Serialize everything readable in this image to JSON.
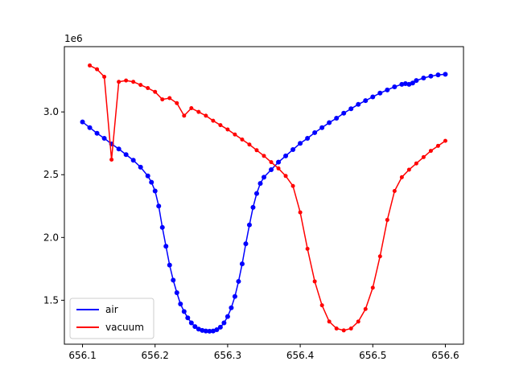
{
  "chart_data": {
    "type": "line",
    "title": "",
    "xlabel": "",
    "ylabel": "",
    "y_offset_label": "1e6",
    "xlim": [
      656.075,
      656.625
    ],
    "ylim": [
      1150000,
      3520000
    ],
    "x_ticks": [
      656.1,
      656.2,
      656.3,
      656.4,
      656.5,
      656.6
    ],
    "x_tick_labels": [
      "656.1",
      "656.2",
      "656.3",
      "656.4",
      "656.5",
      "656.6"
    ],
    "y_ticks": [
      1500000,
      2000000,
      2500000,
      3000000
    ],
    "y_tick_labels": [
      "1.5",
      "2.0",
      "2.5",
      "3.0"
    ],
    "grid": false,
    "legend_position": "lower-left",
    "series": [
      {
        "name": "air",
        "color": "#0000ff",
        "marker_size": 3,
        "points": [
          [
            656.1,
            2920000
          ],
          [
            656.11,
            2875000
          ],
          [
            656.12,
            2830000
          ],
          [
            656.13,
            2790000
          ],
          [
            656.14,
            2745000
          ],
          [
            656.15,
            2705000
          ],
          [
            656.16,
            2660000
          ],
          [
            656.17,
            2615000
          ],
          [
            656.18,
            2560000
          ],
          [
            656.19,
            2490000
          ],
          [
            656.195,
            2440000
          ],
          [
            656.2,
            2370000
          ],
          [
            656.205,
            2250000
          ],
          [
            656.21,
            2080000
          ],
          [
            656.215,
            1930000
          ],
          [
            656.22,
            1780000
          ],
          [
            656.225,
            1660000
          ],
          [
            656.23,
            1560000
          ],
          [
            656.235,
            1470000
          ],
          [
            656.24,
            1410000
          ],
          [
            656.245,
            1360000
          ],
          [
            656.25,
            1320000
          ],
          [
            656.255,
            1290000
          ],
          [
            656.26,
            1270000
          ],
          [
            656.265,
            1260000
          ],
          [
            656.27,
            1255000
          ],
          [
            656.275,
            1253000
          ],
          [
            656.28,
            1255000
          ],
          [
            656.285,
            1265000
          ],
          [
            656.29,
            1285000
          ],
          [
            656.295,
            1320000
          ],
          [
            656.3,
            1370000
          ],
          [
            656.305,
            1440000
          ],
          [
            656.31,
            1530000
          ],
          [
            656.315,
            1650000
          ],
          [
            656.32,
            1790000
          ],
          [
            656.325,
            1950000
          ],
          [
            656.33,
            2100000
          ],
          [
            656.335,
            2240000
          ],
          [
            656.34,
            2350000
          ],
          [
            656.345,
            2430000
          ],
          [
            656.35,
            2480000
          ],
          [
            656.36,
            2540000
          ],
          [
            656.37,
            2600000
          ],
          [
            656.38,
            2650000
          ],
          [
            656.39,
            2700000
          ],
          [
            656.4,
            2750000
          ],
          [
            656.41,
            2790000
          ],
          [
            656.42,
            2835000
          ],
          [
            656.43,
            2875000
          ],
          [
            656.44,
            2915000
          ],
          [
            656.45,
            2950000
          ],
          [
            656.46,
            2990000
          ],
          [
            656.47,
            3025000
          ],
          [
            656.48,
            3060000
          ],
          [
            656.49,
            3090000
          ],
          [
            656.5,
            3120000
          ],
          [
            656.51,
            3150000
          ],
          [
            656.52,
            3175000
          ],
          [
            656.53,
            3200000
          ],
          [
            656.54,
            3220000
          ],
          [
            656.545,
            3225000
          ],
          [
            656.55,
            3220000
          ],
          [
            656.555,
            3230000
          ],
          [
            656.56,
            3250000
          ],
          [
            656.57,
            3270000
          ],
          [
            656.58,
            3285000
          ],
          [
            656.59,
            3295000
          ],
          [
            656.6,
            3300000
          ]
        ]
      },
      {
        "name": "vacuum",
        "color": "#ff0000",
        "marker_size": 2.5,
        "points": [
          [
            656.11,
            3370000
          ],
          [
            656.12,
            3340000
          ],
          [
            656.13,
            3280000
          ],
          [
            656.14,
            2620000
          ],
          [
            656.15,
            3240000
          ],
          [
            656.16,
            3250000
          ],
          [
            656.17,
            3240000
          ],
          [
            656.18,
            3215000
          ],
          [
            656.19,
            3190000
          ],
          [
            656.2,
            3160000
          ],
          [
            656.21,
            3100000
          ],
          [
            656.22,
            3110000
          ],
          [
            656.23,
            3070000
          ],
          [
            656.24,
            2970000
          ],
          [
            656.25,
            3030000
          ],
          [
            656.26,
            3000000
          ],
          [
            656.27,
            2970000
          ],
          [
            656.28,
            2930000
          ],
          [
            656.29,
            2895000
          ],
          [
            656.3,
            2860000
          ],
          [
            656.31,
            2820000
          ],
          [
            656.32,
            2780000
          ],
          [
            656.33,
            2740000
          ],
          [
            656.34,
            2695000
          ],
          [
            656.35,
            2650000
          ],
          [
            656.36,
            2600000
          ],
          [
            656.37,
            2550000
          ],
          [
            656.38,
            2490000
          ],
          [
            656.39,
            2410000
          ],
          [
            656.4,
            2200000
          ],
          [
            656.41,
            1910000
          ],
          [
            656.42,
            1650000
          ],
          [
            656.43,
            1460000
          ],
          [
            656.44,
            1330000
          ],
          [
            656.45,
            1275000
          ],
          [
            656.46,
            1260000
          ],
          [
            656.47,
            1275000
          ],
          [
            656.48,
            1330000
          ],
          [
            656.49,
            1430000
          ],
          [
            656.5,
            1600000
          ],
          [
            656.51,
            1850000
          ],
          [
            656.52,
            2140000
          ],
          [
            656.53,
            2370000
          ],
          [
            656.54,
            2480000
          ],
          [
            656.55,
            2540000
          ],
          [
            656.56,
            2590000
          ],
          [
            656.57,
            2640000
          ],
          [
            656.58,
            2690000
          ],
          [
            656.59,
            2730000
          ],
          [
            656.6,
            2770000
          ]
        ]
      }
    ]
  }
}
